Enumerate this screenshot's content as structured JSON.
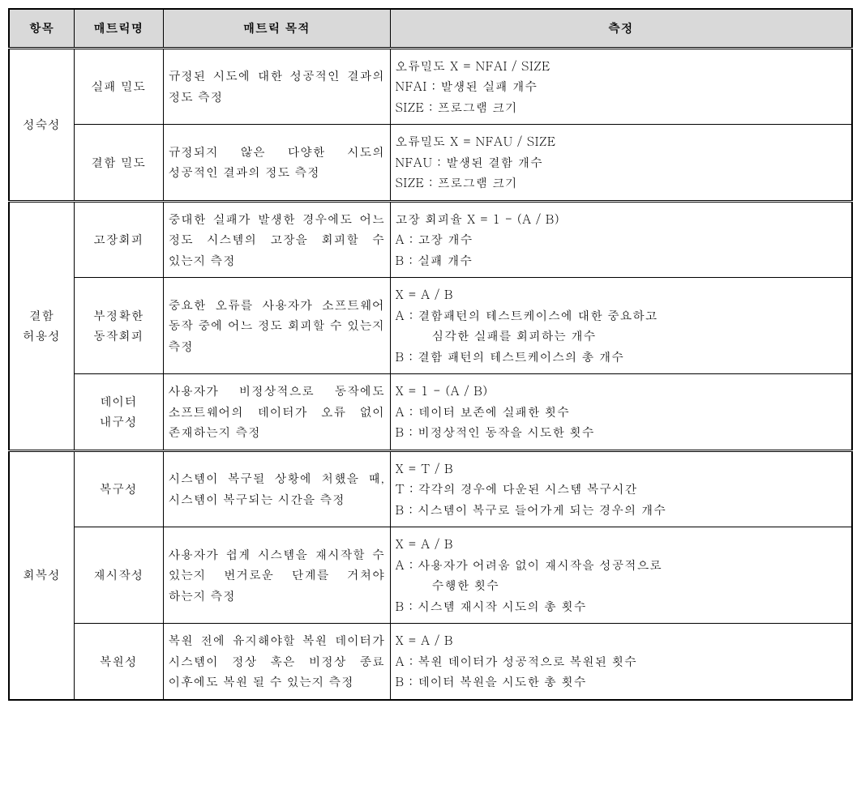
{
  "headers": {
    "category": "항목",
    "metric": "매트릭명",
    "purpose": "매트릭 목적",
    "measure": "측정"
  },
  "sections": [
    {
      "category": "성숙성",
      "rows": [
        {
          "metric": "실패 밀도",
          "purpose": "규정된 시도에 대한 성공적인 결과의 정도 측정",
          "measure": [
            "오류밀도 X = NFAI / SIZE",
            "NFAI : 발생된 실패 개수",
            "SIZE : 프로그램 크기"
          ]
        },
        {
          "metric": "결함 밀도",
          "purpose": "규정되지 않은 다양한 시도의 성공적인 결과의 정도 측정",
          "measure": [
            "오류밀도 X = NFAU / SIZE",
            "NFAU : 발생된 결함 개수",
            "SIZE : 프로그램 크기"
          ]
        }
      ]
    },
    {
      "category": "결함\n허용성",
      "rows": [
        {
          "metric": "고장회피",
          "purpose": "중대한 실패가 발생한 경우에도 어느 정도 시스템의 고장을 회피할 수 있는지 측정",
          "measure": [
            "고장 회피율 X = 1 - (A / B)",
            "A : 고장 개수",
            "B : 실패 개수"
          ]
        },
        {
          "metric": "부정확한\n동작회피",
          "purpose": "중요한 오류를 사용자가 소프트웨어 동작 중에 어느 정도 회피할 수 있는지 측정",
          "measure": [
            "X = A / B",
            "A : 결함패턴의 테스트케이스에 대한 중요하고",
            {
              "indent": true,
              "text": "심각한 실패를 회피하는 개수"
            },
            "B : 결함 패턴의 테스트케이스의 총 개수"
          ]
        },
        {
          "metric": "데이터\n내구성",
          "purpose": "사용자가 비정상적으로 동작에도 소프트웨어의 데이터가 오류 없이 존재하는지 측정",
          "measure": [
            "X = 1 - (A / B)",
            "A : 데이터 보존에 실패한 횟수",
            "B : 비정상적인 동작을 시도한 횟수"
          ]
        }
      ]
    },
    {
      "category": "회복성",
      "rows": [
        {
          "metric": "복구성",
          "purpose": "시스템이 복구될 상황에 처했을 때, 시스템이 복구되는 시간을 측정",
          "measure": [
            "X = T / B",
            "T : 각각의 경우에 다운된 시스템 복구시간",
            "B : 시스템이 복구로 들어가게 되는 경우의 개수"
          ]
        },
        {
          "metric": "재시작성",
          "purpose": "사용자가 쉽게 시스템을 재시작할 수 있는지 번거로운 단계를 거쳐야 하는지 측정",
          "measure": [
            "X = A / B",
            "A : 사용자가 어려움 없이 재시작을 성공적으로",
            {
              "indent": true,
              "text": "수행한 횟수"
            },
            "B : 시스템 재시작 시도의 총 횟수"
          ]
        },
        {
          "metric": "복원성",
          "purpose": "복원 전에 유지해야할 복원 데이터가 시스템이 정상 혹은 비정상 종료 이후에도 복원 될 수 있는지 측정",
          "measure": [
            "X = A / B",
            "A : 복원 데이터가 성공적으로 복원된 횟수",
            "B : 데이터 복원을 시도한 총 횟수"
          ]
        }
      ]
    }
  ]
}
